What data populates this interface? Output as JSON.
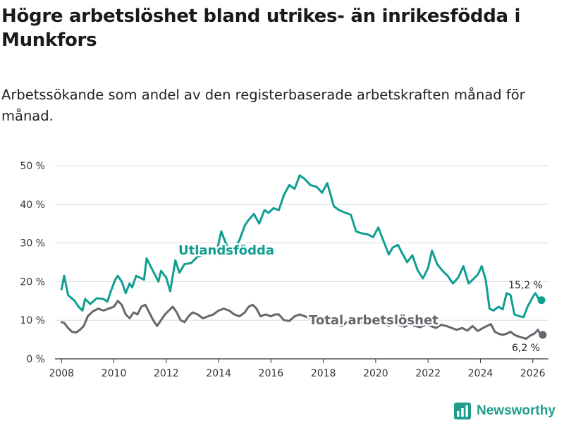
{
  "header": {
    "title": "Högre arbetslöshet bland utrikes- än inrikesfödda i Munkfors",
    "subtitle": "Arbetssökande som andel av den registerbaserade arbetskraften månad för månad."
  },
  "brand": {
    "name": "Newsworthy",
    "icon": "bar-chart-logo-icon",
    "color": "#1f9e8c"
  },
  "chart_data": {
    "type": "line",
    "xlabel": "",
    "ylabel": "",
    "ylim": [
      0,
      50
    ],
    "xlim": [
      2007.75,
      2026.6
    ],
    "grid": true,
    "y_ticks": [
      0,
      10,
      20,
      30,
      40,
      50
    ],
    "y_tick_labels": [
      "0 %",
      "10 %",
      "20 %",
      "30 %",
      "40 %",
      "50 %"
    ],
    "x_ticks": [
      2008,
      2010,
      2012,
      2014,
      2016,
      2018,
      2020,
      2022,
      2024,
      2026
    ],
    "x_tick_labels": [
      "2008",
      "2010",
      "2012",
      "2014",
      "2016",
      "2018",
      "2020",
      "2022",
      "2024",
      "2026"
    ],
    "series": [
      {
        "name": "Utlandsfödda",
        "color": "#0f9e91",
        "end_label": "15,2 %",
        "x": [
          2008.0,
          2008.1,
          2008.25,
          2008.5,
          2008.65,
          2008.8,
          2008.9,
          2009.1,
          2009.35,
          2009.6,
          2009.75,
          2009.9,
          2010.05,
          2010.15,
          2010.3,
          2010.45,
          2010.6,
          2010.7,
          2010.85,
          2011.0,
          2011.15,
          2011.25,
          2011.4,
          2011.55,
          2011.7,
          2011.8,
          2012.0,
          2012.15,
          2012.35,
          2012.5,
          2012.7,
          2012.95,
          2013.2,
          2013.5,
          2013.7,
          2013.9,
          2014.1,
          2014.3,
          2014.55,
          2014.8,
          2015.0,
          2015.15,
          2015.35,
          2015.55,
          2015.75,
          2015.9,
          2016.1,
          2016.3,
          2016.5,
          2016.7,
          2016.9,
          2017.1,
          2017.3,
          2017.5,
          2017.75,
          2017.95,
          2018.15,
          2018.4,
          2018.6,
          2018.85,
          2019.05,
          2019.25,
          2019.45,
          2019.7,
          2019.9,
          2020.1,
          2020.3,
          2020.5,
          2020.65,
          2020.85,
          2021.0,
          2021.2,
          2021.4,
          2021.6,
          2021.8,
          2022.0,
          2022.15,
          2022.35,
          2022.55,
          2022.75,
          2022.95,
          2023.15,
          2023.35,
          2023.55,
          2023.75,
          2023.9,
          2024.05,
          2024.2,
          2024.35,
          2024.5,
          2024.7,
          2024.85,
          2025.0,
          2025.15,
          2025.3,
          2025.5,
          2025.65,
          2025.8,
          2026.0,
          2026.1,
          2026.25
        ],
        "values": [
          18,
          21.5,
          16.5,
          15,
          13.5,
          12.5,
          15.5,
          14.2,
          15.7,
          15.5,
          14.8,
          17.8,
          20.5,
          21.5,
          20,
          17,
          19.5,
          18.5,
          21.5,
          21,
          20.5,
          26,
          24,
          22,
          20,
          22.8,
          21,
          17.5,
          25.5,
          22.3,
          24.5,
          24.8,
          26.5,
          27,
          28.5,
          26.8,
          33,
          29.5,
          27.8,
          30.8,
          34.5,
          36,
          37.5,
          35,
          38.5,
          37.8,
          39,
          38.5,
          42.5,
          45,
          44,
          47.5,
          46.5,
          45,
          44.5,
          43,
          45.5,
          39.5,
          38.5,
          37.8,
          37.3,
          33,
          32.5,
          32.2,
          31.5,
          34,
          30.5,
          27,
          28.8,
          29.5,
          27.5,
          25,
          26.8,
          23,
          20.8,
          23.5,
          28,
          24.5,
          22.8,
          21.5,
          19.5,
          21,
          24,
          19.5,
          20.8,
          21.8,
          24,
          20.5,
          13,
          12.5,
          13.5,
          12.8,
          17,
          16.5,
          11.5,
          11,
          10.8,
          13.5,
          16,
          17,
          15.2
        ]
      },
      {
        "name": "Total arbetslöshet",
        "color": "#66666e",
        "end_label": "6,2 %",
        "x": [
          2008.0,
          2008.1,
          2008.25,
          2008.4,
          2008.55,
          2008.7,
          2008.85,
          2009.0,
          2009.2,
          2009.4,
          2009.6,
          2009.8,
          2010.0,
          2010.15,
          2010.3,
          2010.45,
          2010.6,
          2010.75,
          2010.9,
          2011.05,
          2011.2,
          2011.35,
          2011.5,
          2011.65,
          2011.8,
          2011.95,
          2012.1,
          2012.25,
          2012.4,
          2012.55,
          2012.7,
          2012.85,
          2013.0,
          2013.2,
          2013.4,
          2013.6,
          2013.8,
          2014.0,
          2014.2,
          2014.4,
          2014.6,
          2014.8,
          2015.0,
          2015.15,
          2015.3,
          2015.45,
          2015.6,
          2015.8,
          2016.0,
          2016.15,
          2016.3,
          2016.5,
          2016.7,
          2016.9,
          2017.1,
          2017.3,
          2017.5,
          2017.7,
          2017.9,
          2018.1,
          2018.3,
          2018.5,
          2018.7,
          2018.9,
          2019.1,
          2019.3,
          2019.5,
          2019.7,
          2019.9,
          2020.1,
          2020.3,
          2020.5,
          2020.7,
          2020.9,
          2021.1,
          2021.3,
          2021.5,
          2021.7,
          2021.9,
          2022.1,
          2022.3,
          2022.5,
          2022.7,
          2022.9,
          2023.1,
          2023.3,
          2023.5,
          2023.7,
          2023.9,
          2024.1,
          2024.25,
          2024.4,
          2024.55,
          2024.7,
          2024.85,
          2025.0,
          2025.15,
          2025.3,
          2025.45,
          2025.6,
          2025.75,
          2025.9,
          2026.05,
          2026.2,
          2026.3
        ],
        "values": [
          9.5,
          9.3,
          8,
          7,
          6.8,
          7.5,
          8.5,
          11,
          12.3,
          13,
          12.5,
          13,
          13.5,
          15,
          14,
          11.5,
          10.5,
          12,
          11.5,
          13.5,
          14,
          12,
          10,
          8.5,
          10,
          11.5,
          12.5,
          13.5,
          12,
          10,
          9.5,
          11,
          12,
          11.5,
          10.5,
          11,
          11.5,
          12.5,
          13,
          12.5,
          11.5,
          11,
          12,
          13.5,
          14,
          13,
          11,
          11.5,
          11,
          11.5,
          11.5,
          10,
          9.8,
          11,
          11.5,
          11,
          10.5,
          10,
          9.5,
          9.3,
          8.8,
          9,
          8.5,
          9.5,
          9,
          9.5,
          9.3,
          9,
          9.5,
          10,
          9.3,
          8.5,
          9,
          8.8,
          8.3,
          9,
          8.5,
          8.2,
          8.8,
          8.5,
          8,
          8.8,
          8.5,
          8,
          7.5,
          8,
          7.3,
          8.5,
          7.2,
          8,
          8.5,
          9,
          7,
          6.5,
          6.2,
          6.5,
          7,
          6.2,
          5.8,
          5.5,
          5.2,
          6,
          6.5,
          7.5,
          6.2
        ]
      }
    ],
    "annotations": [
      {
        "text": "Utlandsfödda",
        "series": "Utlandsfödda"
      },
      {
        "text": "Total arbetslöshet",
        "series": "Total arbetslöshet"
      }
    ]
  }
}
